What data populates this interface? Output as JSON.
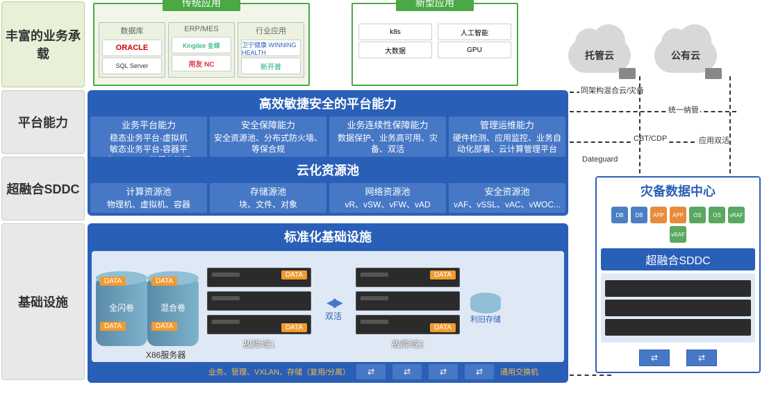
{
  "rows": {
    "r1": {
      "label": "丰富的业务承载"
    },
    "r2": {
      "label": "平台能力"
    },
    "r3": {
      "label": "超融合SDDC"
    },
    "r4": {
      "label": "基础设施"
    }
  },
  "traditional": {
    "header": "传统应用",
    "cols": [
      {
        "header": "数据库",
        "items": [
          "ORACLE",
          "SQL Server"
        ]
      },
      {
        "header": "ERP/MES",
        "items": [
          "Kingdee 金蝶",
          "用友 NC"
        ]
      },
      {
        "header": "行业应用",
        "items": [
          "卫宁健康 WINNING HEALTH",
          "新开普"
        ]
      }
    ]
  },
  "newapp": {
    "header": "新型应用",
    "items": [
      "k8s",
      "人工智能",
      "大数据",
      "GPU"
    ]
  },
  "clouds": {
    "a": "托管云",
    "b": "公有云"
  },
  "platform": {
    "header": "高效敏捷安全的平台能力",
    "cells": [
      {
        "t": "业务平台能力",
        "d": "稳态业务平台-虚拟机\n敏态业务平台-容器平台/DevOps/微服务治理"
      },
      {
        "t": "安全保障能力",
        "d": "安全资源池、分布式防火墙、等保合规"
      },
      {
        "t": "业务连续性保障能力",
        "d": "数据保护、业务高可用、灾备、双活"
      },
      {
        "t": "管理运维能力",
        "d": "硬件检测、应用监控、业务自动化部署、云计算管理平台"
      }
    ]
  },
  "sddc": {
    "header": "云化资源池",
    "cells": [
      {
        "t": "计算资源池",
        "d": "物理机、虚拟机、容器"
      },
      {
        "t": "存储源池",
        "d": "块、文件、对象"
      },
      {
        "t": "网络资源池",
        "d": "vR、vSW、vFW、vAD"
      },
      {
        "t": "安全资源池",
        "d": "vAF、vSSL、vAC、vWOC..."
      }
    ]
  },
  "infra": {
    "header": "标准化基础设施",
    "cyl": {
      "flash": "全闪卷",
      "hybrid": "混合卷",
      "data": "DATA"
    },
    "fd1": "故障域1",
    "fd2": "故障域2",
    "dual": "双活",
    "disk": "利旧存储",
    "x86": "X86服务器",
    "net_label": "业务、管理、VXLAN、存储（复用/分离）",
    "switch_label": "通用交换机"
  },
  "dr": {
    "header": "灾备数据中心",
    "sddc": "超融合SDDC",
    "icon_colors": [
      "#4a7fc4",
      "#4a7fc4",
      "#e98b3a",
      "#e98b3a",
      "#5aa860",
      "#5aa860",
      "#5aa860",
      "#5aa860"
    ],
    "icon_txt": [
      "DB",
      "DB",
      "APP",
      "APP",
      "OS",
      "OS",
      "vRAF",
      "vRAF"
    ]
  },
  "dash_labels": {
    "a": "同架构混合云/灾备",
    "b": "统一纳管",
    "c": "CBT/CDP",
    "d": "应用双活",
    "e": "Dateguard"
  },
  "colors": {
    "green": "#4aa845",
    "blue_dark": "#2a5fb8",
    "blue_mid": "#4678c6",
    "label_bg": "#e8e8e8",
    "green_bg": "#e8f0d8",
    "orange": "#f39a2f"
  }
}
